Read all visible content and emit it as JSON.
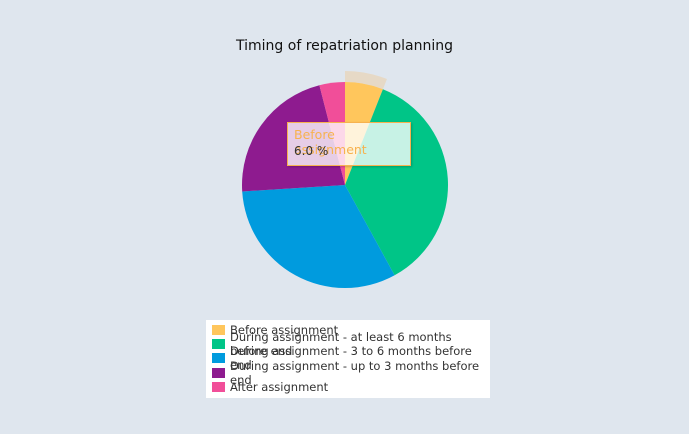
{
  "chart_data": {
    "type": "pie",
    "title": "Timing of repatriation planning",
    "categories": [
      "Before assignment",
      "During assignment - at least 6 months before end",
      "During assignment - 3 to 6 months before end",
      "During assignment - up to 3 months before end",
      "After assignment"
    ],
    "values": [
      6.0,
      36.0,
      32.0,
      22.0,
      4.0
    ],
    "unit": "%",
    "colors": [
      "#ffc65c",
      "#00c587",
      "#009bde",
      "#8e1b8f",
      "#f14e99"
    ],
    "legend_position": "bottom",
    "highlighted": {
      "label": "Before assignment",
      "value": "6.0 %"
    }
  },
  "tooltip": {
    "label": "Before assignment",
    "value": "6.0 %"
  },
  "legend": [
    {
      "label": "Before assignment",
      "color": "#ffc65c"
    },
    {
      "label": "During assignment - at least 6 months before end",
      "color": "#00c587"
    },
    {
      "label": "During assignment - 3 to 6 months before end",
      "color": "#009bde"
    },
    {
      "label": "During assignment - up to 3 months before end",
      "color": "#8e1b8f"
    },
    {
      "label": "After assignment",
      "color": "#f14e99"
    }
  ]
}
